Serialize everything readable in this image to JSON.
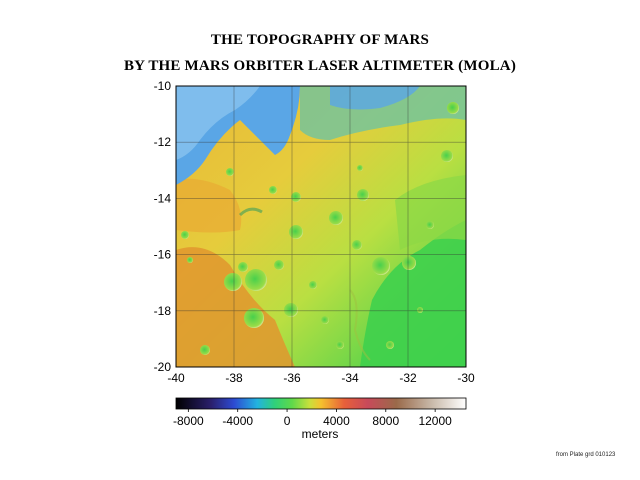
{
  "title": {
    "line1": "THE TOPOGRAPHY OF MARS",
    "line2": "BY THE MARS ORBITER LASER ALTIMETER (MOLA)"
  },
  "map": {
    "lon_range": [
      -40,
      -30
    ],
    "lat_range": [
      -20,
      -10
    ],
    "x_ticks": [
      "-40",
      "-38",
      "-36",
      "-34",
      "-32",
      "-30"
    ],
    "y_ticks": [
      "-10",
      "-12",
      "-14",
      "-16",
      "-18",
      "-20"
    ],
    "grid": true,
    "colors": {
      "low_blue": "#5aa6e6",
      "mid_green": "#3cd24a",
      "yellow_green": "#c8e03c",
      "yellow": "#e8c83a",
      "orange": "#e0952e"
    }
  },
  "colorbar": {
    "ticks": [
      "-8000",
      "-4000",
      "0",
      "4000",
      "8000",
      "12000"
    ],
    "unit": "meters",
    "colors": [
      "#000000",
      "#2a1f6b",
      "#2d4bd2",
      "#23b3e0",
      "#2fd07a",
      "#3fd64a",
      "#c8e03c",
      "#f5c12e",
      "#e8603a",
      "#c84a5a",
      "#9a6a4a",
      "#b8a898",
      "#ffffff"
    ]
  },
  "credit": "from Plate grd 010123"
}
